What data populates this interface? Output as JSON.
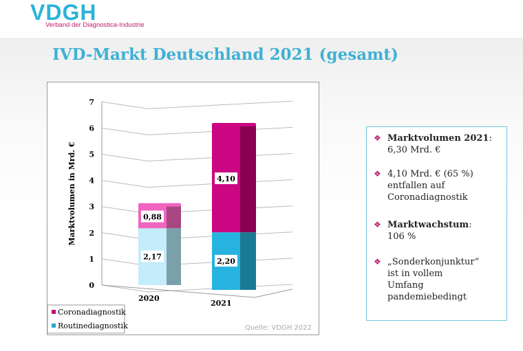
{
  "header": {
    "logo_text": "VDGH",
    "logo_subtitle": "Verband der Diagnostica-Industrie",
    "title": "IVD-Markt Deutschland 2021 (gesamt)"
  },
  "chart_data": {
    "type": "bar",
    "stacked": true,
    "categories": [
      "2020",
      "2021"
    ],
    "series": [
      {
        "name": "Routinediagnostik",
        "values": [
          2.17,
          2.2
        ],
        "labels": [
          "2,17",
          "2,20"
        ],
        "colors": [
          "#c4ecfa",
          "#27b3e0"
        ]
      },
      {
        "name": "Coronadiagnostik",
        "values": [
          0.88,
          4.1
        ],
        "labels": [
          "0,88",
          "4,10"
        ],
        "colors": [
          "#f065c0",
          "#cc0682"
        ]
      }
    ],
    "ylabel": "Marktvolumen in Mrd. €",
    "ylim": [
      0,
      7
    ],
    "yticks": [
      "0",
      "1",
      "2",
      "3",
      "4",
      "5",
      "6",
      "7"
    ],
    "grid": true,
    "legend": [
      "Coronadiagnostik",
      "Routinediagnostik"
    ],
    "legend_colors": [
      "#c0087a",
      "#27a6d2"
    ],
    "legend_position": "bottom-left",
    "source": "Quelle: VDGH 2022"
  },
  "info": {
    "items": [
      {
        "bold": "Marktvolumen 2021",
        "rest": ":",
        "line2": "6,30 Mrd. €"
      },
      {
        "text": "4,10 Mrd. € (65 %) entfallen auf Coronadiagnostik"
      },
      {
        "bold": "Marktwachstum",
        "rest": ":",
        "line2": "106 %"
      },
      {
        "text": "„Sonderkonjunktur“ ist in vollem Umfang pandemiebedingt"
      }
    ],
    "bullet": "❖"
  }
}
